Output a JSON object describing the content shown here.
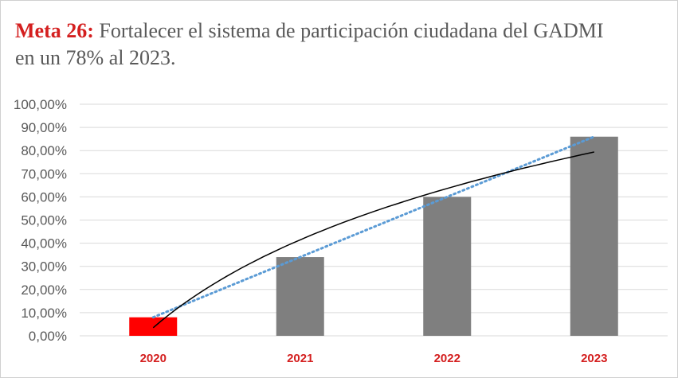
{
  "title": {
    "lead": "Meta 26:",
    "text": "Fortalecer el sistema de participación ciudadana del GADMI en un 78% al 2023."
  },
  "chart_data": {
    "type": "bar",
    "categories": [
      "2020",
      "2021",
      "2022",
      "2023"
    ],
    "series": [
      {
        "values": [
          8,
          34,
          60,
          86
        ]
      }
    ],
    "bar_colors": [
      "#ff0000",
      "#7f7f7f",
      "#7f7f7f",
      "#7f7f7f"
    ],
    "ylim": [
      0,
      100
    ],
    "yticks": [
      0,
      10,
      20,
      30,
      40,
      50,
      60,
      70,
      80,
      90,
      100
    ],
    "ytick_labels": [
      "0,00%",
      "10,00%",
      "20,00%",
      "30,00%",
      "40,00%",
      "50,00%",
      "60,00%",
      "70,00%",
      "80,00%",
      "90,00%",
      "100,00%"
    ],
    "grid": true,
    "trendlines": [
      {
        "kind": "linear",
        "style": "dotted",
        "color": "#5b9bd5"
      },
      {
        "kind": "logarithmic",
        "style": "solid",
        "color": "#000000"
      }
    ],
    "colors": {
      "grid": "#d9d9d9",
      "axis_labels": "#595959",
      "category_labels": "#d41f1f"
    }
  }
}
